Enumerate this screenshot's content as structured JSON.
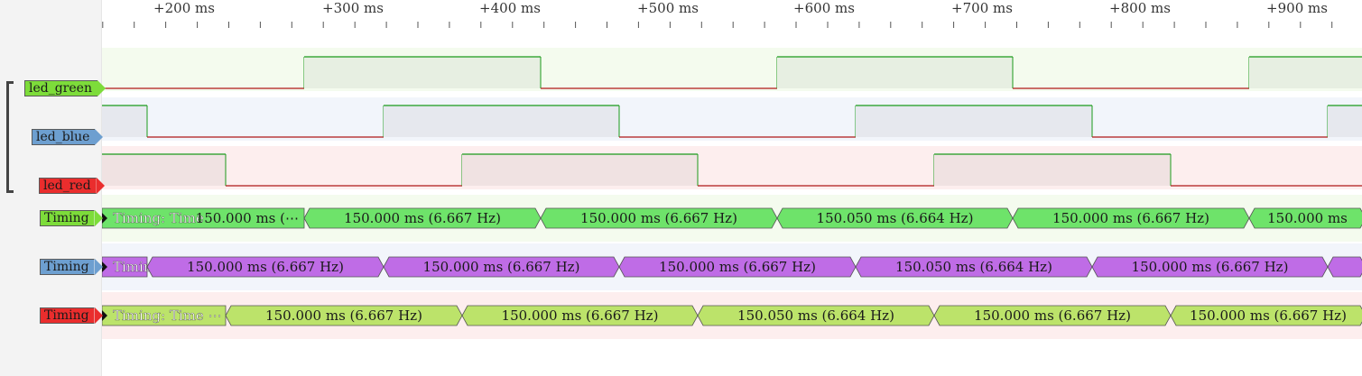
{
  "ruler": {
    "ticks": [
      "+200 ms",
      "+300 ms",
      "+400 ms",
      "+500 ms",
      "+600 ms",
      "+700 ms",
      "+800 ms",
      "+900 ms"
    ]
  },
  "channels": [
    {
      "name": "led_green",
      "color": "#7ddc3a",
      "row_bg": "#f4fbee"
    },
    {
      "name": "led_blue",
      "color": "#6d9fd0",
      "row_bg": "#f2f5fb"
    },
    {
      "name": "led_red",
      "color": "#ea2d2d",
      "row_bg": "#fdeeee"
    }
  ],
  "decoders": [
    {
      "name": "Timing",
      "color": "#7ddc3a",
      "row_bg": "#f4fbee",
      "seg_color": "#6ee36a",
      "first": "Timing: Time",
      "first_value": "150.000 ms (⋯",
      "segments": [
        "150.000 ms (6.667 Hz)",
        "150.000 ms (6.667 Hz)",
        "150.050 ms (6.664 Hz)",
        "150.000 ms (6.667 Hz)",
        "150.000 ms"
      ]
    },
    {
      "name": "Timing",
      "color": "#6d9fd0",
      "row_bg": "#f2f5fb",
      "seg_color": "#bf6ce6",
      "first": "Timing: Time",
      "segments": [
        "150.000 ms (6.667 Hz)",
        "150.000 ms (6.667 Hz)",
        "150.000 ms (6.667 Hz)",
        "150.050 ms (6.664 Hz)",
        "150.000 ms (6.667 Hz)",
        ""
      ]
    },
    {
      "name": "Timing",
      "color": "#ea2d2d",
      "row_bg": "#fdeeee",
      "seg_color": "#bce36a",
      "first": "Timing: Time ⋯",
      "segments": [
        "150.000 ms (6.667 Hz)",
        "150.000 ms (6.667 Hz)",
        "150.050 ms (6.664 Hz)",
        "150.000 ms (6.667 Hz)",
        "150.000 ms (6.667 Hz)"
      ]
    }
  ]
}
